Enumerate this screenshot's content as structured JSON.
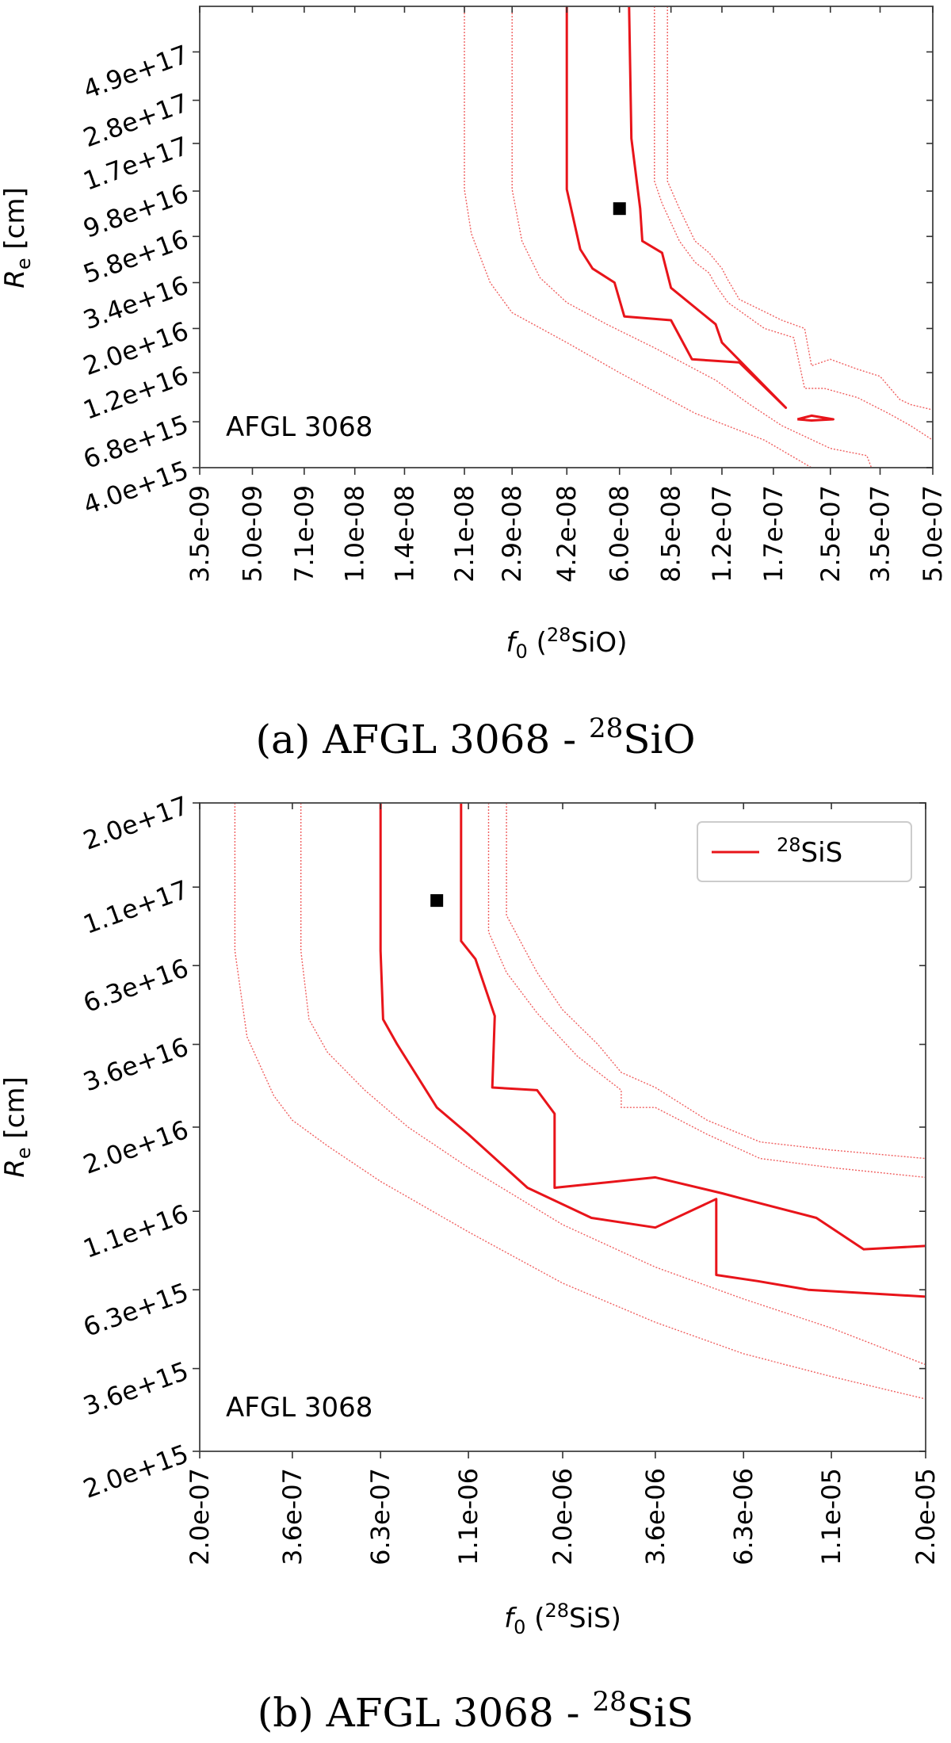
{
  "chart_data": [
    {
      "type": "line",
      "plot_kind": "contour",
      "caption": "(a) AFGL 3068 - ",
      "caption_molecule": "SiO",
      "caption_isotope": "28",
      "annotation": "AFGL 3068",
      "xlabel_var": "f",
      "xlabel_sub": "0",
      "xlabel_isotope": "28",
      "xlabel_molecule": "SiO",
      "ylabel_var": "R",
      "ylabel_sub": "e",
      "ylabel_unit": " [cm]",
      "x_scale": "log",
      "y_scale": "log",
      "x_ticks": [
        "3.5e-09",
        "5.0e-09",
        "7.1e-09",
        "1.0e-08",
        "1.4e-08",
        "2.1e-08",
        "2.9e-08",
        "4.2e-08",
        "6.0e-08",
        "8.5e-08",
        "1.2e-07",
        "1.7e-07",
        "2.5e-07",
        "3.5e-07",
        "5.0e-07"
      ],
      "y_ticks": [
        "4.0e+15",
        "6.8e+15",
        "1.2e+16",
        "2.0e+16",
        "3.4e+16",
        "5.8e+16",
        "9.8e+16",
        "1.7e+17",
        "2.8e+17",
        "4.9e+17"
      ],
      "xlim": [
        3.5e-09,
        5e-07
      ],
      "ylim": [
        4000000000000000.0,
        8.3e+17
      ],
      "best_fit": {
        "x": 6e-08,
        "y": 8e+16
      },
      "solid_contours": [
        [
          [
            4.2e-08,
            8.3e+17
          ],
          [
            4.2e-08,
            1e+17
          ],
          [
            4.6e-08,
            5e+16
          ],
          [
            5e-08,
            4e+16
          ],
          [
            5.8e-08,
            3.4e+16
          ],
          [
            6.2e-08,
            2.3e+16
          ],
          [
            8.5e-08,
            2.2e+16
          ],
          [
            9.8e-08,
            1.4e+16
          ],
          [
            1.35e-07,
            1.35e+16
          ],
          [
            1.85e-07,
            8000000000000000.0
          ],
          [
            1.4e-07,
            1.3e+16
          ],
          [
            1.2e-07,
            1.7e+16
          ],
          [
            1.15e-07,
            2.1e+16
          ],
          [
            8.5e-08,
            3.2e+16
          ],
          [
            8e-08,
            4.8e+16
          ],
          [
            7e-08,
            5.5e+16
          ],
          [
            6.9e-08,
            8e+16
          ],
          [
            6.5e-08,
            1.8e+17
          ],
          [
            6.4e-08,
            8.3e+17
          ]
        ],
        [
          [
            2e-07,
            7000000000000000.0
          ],
          [
            2.2e-07,
            7300000000000000.0
          ],
          [
            2.55e-07,
            7000000000000000.0
          ],
          [
            2.2e-07,
            6900000000000000.0
          ],
          [
            2e-07,
            7000000000000000.0
          ]
        ]
      ],
      "dotted_contours": [
        [
          [
            2.1e-08,
            8.3e+17
          ],
          [
            2.1e-08,
            1e+17
          ],
          [
            2.2e-08,
            6e+16
          ],
          [
            2.5e-08,
            3.4e+16
          ],
          [
            2.9e-08,
            2.4e+16
          ],
          [
            4.2e-08,
            1.7e+16
          ],
          [
            6e-08,
            1.2e+16
          ],
          [
            1e-07,
            7500000000000000.0
          ],
          [
            1.6e-07,
            5500000000000000.0
          ],
          [
            2.2e-07,
            4000000000000000.0
          ]
        ],
        [
          [
            2.9e-08,
            8.3e+17
          ],
          [
            2.9e-08,
            1e+17
          ],
          [
            3.1e-08,
            5.5e+16
          ],
          [
            3.5e-08,
            3.6e+16
          ],
          [
            4.2e-08,
            2.7e+16
          ],
          [
            5.5e-08,
            2.1e+16
          ],
          [
            7.6e-08,
            1.6e+16
          ],
          [
            1.15e-07,
            1.1e+16
          ],
          [
            1.45e-07,
            8300000000000000.0
          ],
          [
            1.8e-07,
            6500000000000000.0
          ],
          [
            2.5e-07,
            5000000000000000.0
          ],
          [
            3.2e-07,
            4600000000000000.0
          ],
          [
            3.3e-07,
            4000000000000000.0
          ]
        ],
        [
          [
            7.6e-08,
            8.3e+17
          ],
          [
            7.6e-08,
            1.1e+17
          ],
          [
            8e-08,
            8.5e+16
          ],
          [
            9e-08,
            5.5e+16
          ],
          [
            1e-07,
            4.3e+16
          ],
          [
            1.1e-07,
            3.8e+16
          ],
          [
            1.15e-07,
            3.3e+16
          ],
          [
            1.25e-07,
            2.7e+16
          ],
          [
            1.6e-07,
            2e+16
          ],
          [
            1.95e-07,
            1.8e+16
          ],
          [
            2.1e-07,
            1e+16
          ],
          [
            2.4e-07,
            1e+16
          ],
          [
            3e-07,
            9000000000000000.0
          ],
          [
            3.7e-07,
            7500000000000000.0
          ],
          [
            4.3e-07,
            6500000000000000.0
          ],
          [
            5e-07,
            5500000000000000.0
          ]
        ],
        [
          [
            8.3e-08,
            8.3e+17
          ],
          [
            8.3e-08,
            1.1e+17
          ],
          [
            9e-08,
            8e+16
          ],
          [
            1e-07,
            5.5e+16
          ],
          [
            1.1e-07,
            4.8e+16
          ],
          [
            1.2e-07,
            4e+16
          ],
          [
            1.25e-07,
            3.5e+16
          ],
          [
            1.35e-07,
            2.8e+16
          ],
          [
            1.8e-07,
            2.2e+16
          ],
          [
            2.1e-07,
            2e+16
          ],
          [
            2.2e-07,
            1.3e+16
          ],
          [
            2.5e-07,
            1.4e+16
          ],
          [
            3e-07,
            1.25e+16
          ],
          [
            3.5e-07,
            1.15e+16
          ],
          [
            4e-07,
            8800000000000000.0
          ],
          [
            4.3e-07,
            8300000000000000.0
          ],
          [
            5e-07,
            7800000000000000.0
          ]
        ]
      ]
    },
    {
      "type": "line",
      "plot_kind": "contour",
      "caption": "(b) AFGL 3068 - ",
      "caption_molecule": "SiS",
      "caption_isotope": "28",
      "annotation": "AFGL 3068",
      "legend": "top-right",
      "series_name_isotope": "28",
      "series_name_molecule": "SiS",
      "xlabel_var": "f",
      "xlabel_sub": "0",
      "xlabel_isotope": "28",
      "xlabel_molecule": "SiS",
      "ylabel_var": "R",
      "ylabel_sub": "e",
      "ylabel_unit": " [cm]",
      "x_scale": "log",
      "y_scale": "log",
      "x_ticks": [
        "2.0e-07",
        "3.6e-07",
        "6.3e-07",
        "1.1e-06",
        "2.0e-06",
        "3.6e-06",
        "6.3e-06",
        "1.1e-05",
        "2.0e-05"
      ],
      "y_ticks": [
        "2.0e+15",
        "3.6e+15",
        "6.3e+15",
        "1.1e+16",
        "2.0e+16",
        "3.6e+16",
        "6.3e+16",
        "1.1e+17",
        "2.0e+17"
      ],
      "xlim": [
        2e-07,
        2e-05
      ],
      "ylim": [
        2000000000000000.0,
        2e+17
      ],
      "best_fit": {
        "x": 9e-07,
        "y": 1e+17
      },
      "solid_contours": [
        [
          [
            6.3e-07,
            2e+17
          ],
          [
            6.3e-07,
            7e+16
          ],
          [
            6.4e-07,
            4.3e+16
          ],
          [
            7e-07,
            3.6e+16
          ],
          [
            9e-07,
            2.3e+16
          ],
          [
            1.1e-06,
            1.9e+16
          ],
          [
            1.6e-06,
            1.3e+16
          ],
          [
            2.4e-06,
            1.05e+16
          ],
          [
            3.6e-06,
            9800000000000000.0
          ],
          [
            5.3e-06,
            1.2e+16
          ],
          [
            5.3e-06,
            7000000000000000.0
          ],
          [
            6.9e-06,
            6700000000000000.0
          ],
          [
            9.5e-06,
            6300000000000000.0
          ],
          [
            2e-05,
            6000000000000000.0
          ]
        ],
        [
          [
            1.05e-06,
            2e+17
          ],
          [
            1.05e-06,
            7.5e+16
          ],
          [
            1.15e-06,
            6.6e+16
          ],
          [
            1.3e-06,
            4.4e+16
          ],
          [
            1.28e-06,
            2.65e+16
          ],
          [
            1.7e-06,
            2.6e+16
          ],
          [
            1.9e-06,
            2.2e+16
          ],
          [
            1.9e-06,
            1.3e+16
          ],
          [
            3.6e-06,
            1.4e+16
          ],
          [
            5.5e-06,
            1.25e+16
          ],
          [
            6.3e-06,
            1.2e+16
          ],
          [
            1e-05,
            1.05e+16
          ],
          [
            1.35e-05,
            8400000000000000.0
          ],
          [
            2e-05,
            8600000000000000.0
          ]
        ]
      ],
      "dotted_contours": [
        [
          [
            2.5e-07,
            2e+17
          ],
          [
            2.5e-07,
            7e+16
          ],
          [
            2.7e-07,
            3.8e+16
          ],
          [
            3.2e-07,
            2.5e+16
          ],
          [
            3.6e-07,
            2.1e+16
          ],
          [
            4.5e-07,
            1.75e+16
          ],
          [
            6.3e-07,
            1.36e+16
          ],
          [
            1.1e-06,
            9500000000000000.0
          ],
          [
            2e-06,
            6600000000000000.0
          ],
          [
            3.6e-06,
            5000000000000000.0
          ],
          [
            6.3e-06,
            4000000000000000.0
          ],
          [
            1.1e-05,
            3400000000000000.0
          ],
          [
            2e-05,
            2900000000000000.0
          ]
        ],
        [
          [
            3.8e-07,
            2e+17
          ],
          [
            3.8e-07,
            7e+16
          ],
          [
            4e-07,
            4.3e+16
          ],
          [
            4.5e-07,
            3.4e+16
          ],
          [
            5.7e-07,
            2.6e+16
          ],
          [
            7.5e-07,
            2e+16
          ],
          [
            1.1e-06,
            1.5e+16
          ],
          [
            2e-06,
            1e+16
          ],
          [
            3.6e-06,
            7400000000000000.0
          ],
          [
            6.3e-06,
            5900000000000000.0
          ],
          [
            1.1e-05,
            4800000000000000.0
          ],
          [
            2e-05,
            3700000000000000.0
          ]
        ],
        [
          [
            1.25e-06,
            2e+17
          ],
          [
            1.25e-06,
            8e+16
          ],
          [
            1.4e-06,
            6e+16
          ],
          [
            1.7e-06,
            4.5e+16
          ],
          [
            2.2e-06,
            3.3e+16
          ],
          [
            2.9e-06,
            2.6e+16
          ],
          [
            2.9e-06,
            2.3e+16
          ],
          [
            3.6e-06,
            2.3e+16
          ],
          [
            5e-06,
            1.9e+16
          ],
          [
            7e-06,
            1.6e+16
          ],
          [
            1.1e-05,
            1.5e+16
          ],
          [
            2e-05,
            1.4e+16
          ]
        ],
        [
          [
            1.4e-06,
            2e+17
          ],
          [
            1.4e-06,
            9e+16
          ],
          [
            1.7e-06,
            6e+16
          ],
          [
            2e-06,
            4.6e+16
          ],
          [
            2.5e-06,
            3.6e+16
          ],
          [
            2.9e-06,
            2.95e+16
          ],
          [
            3.6e-06,
            2.65e+16
          ],
          [
            5e-06,
            2.1e+16
          ],
          [
            7e-06,
            1.8e+16
          ],
          [
            1.1e-05,
            1.7e+16
          ],
          [
            2e-05,
            1.6e+16
          ]
        ]
      ]
    }
  ]
}
